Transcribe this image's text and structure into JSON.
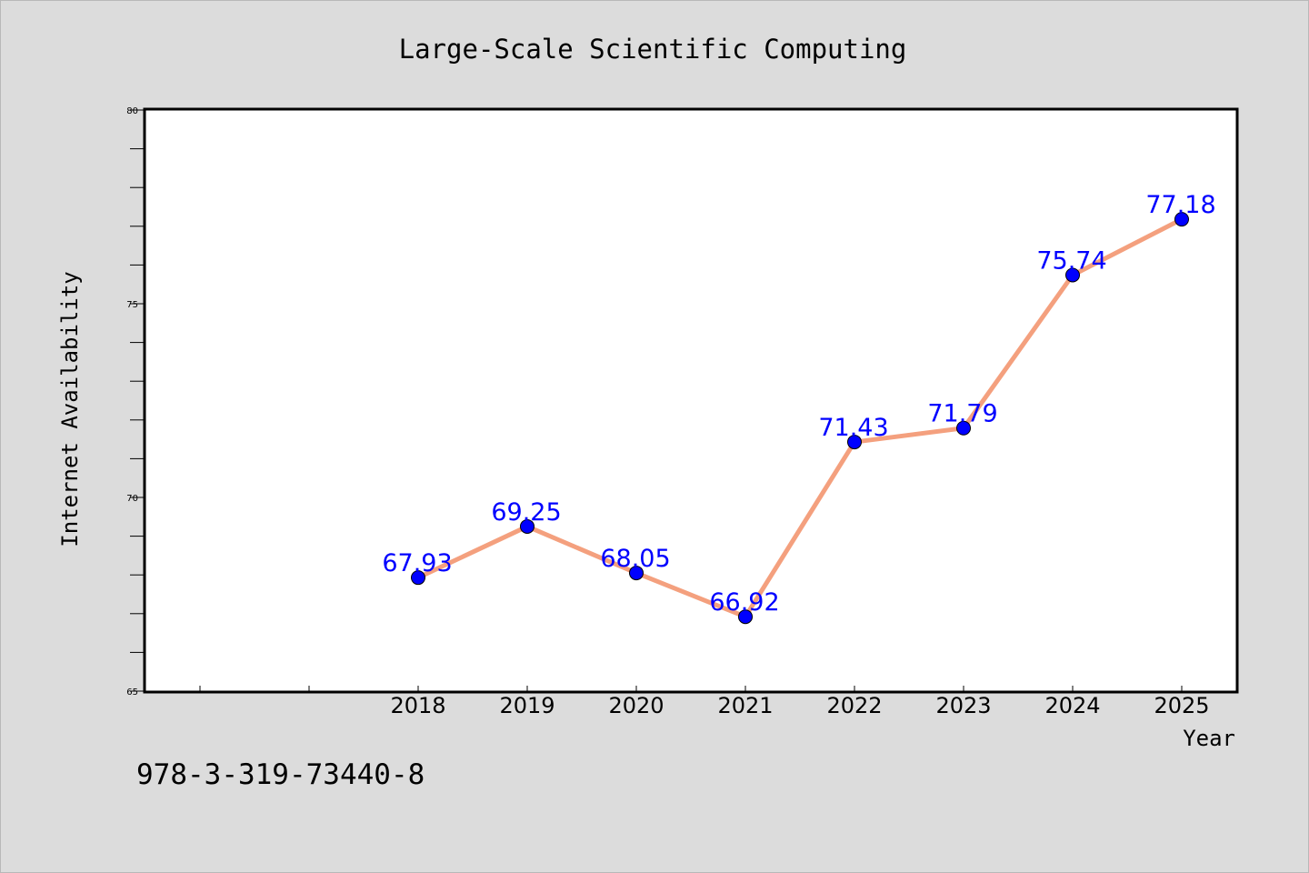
{
  "chart_data": {
    "type": "line",
    "title": "Large-Scale Scientific Computing",
    "xlabel": "Year",
    "ylabel": "Internet Availability",
    "categories": [
      "2018",
      "2019",
      "2020",
      "2021",
      "2022",
      "2023",
      "2024",
      "2025"
    ],
    "series": [
      {
        "values": [
          67.93,
          69.25,
          68.05,
          66.92,
          71.43,
          71.79,
          75.74,
          77.18
        ],
        "labels": [
          "67.93",
          "69.25",
          "68.05",
          "66.92",
          "71.43",
          "71.79",
          "75.74",
          "77.18"
        ],
        "line_color": "#f4a07e",
        "marker_color": "#0000ff"
      }
    ],
    "ylim": [
      65,
      80
    ],
    "yticks": [
      65,
      70,
      75,
      80
    ],
    "grid": false,
    "legend": "none"
  },
  "footnote": "978-3-319-73440-8",
  "colors": {
    "background": "#dcdcdc",
    "plot_background": "#ffffff",
    "data_label": "#0000ff"
  }
}
